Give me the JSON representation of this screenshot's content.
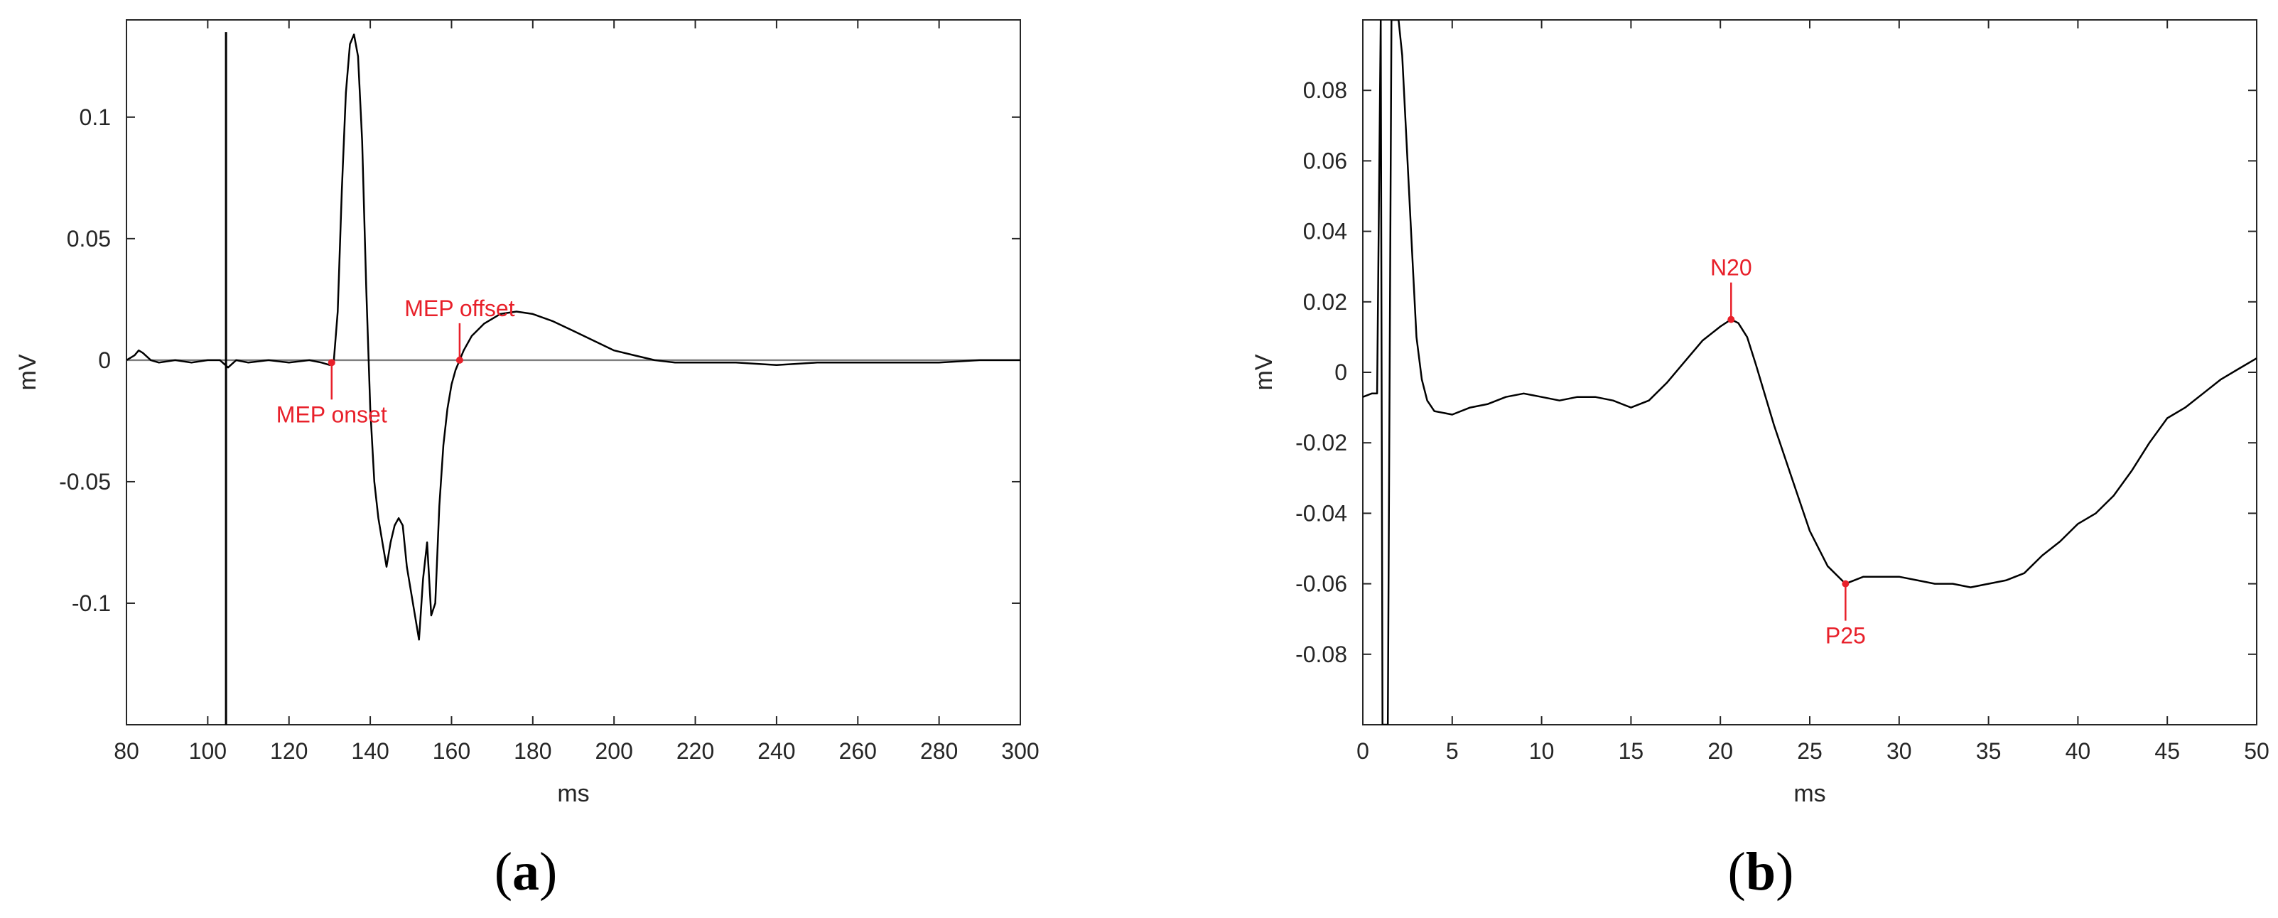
{
  "colors": {
    "trace": "#000000",
    "baseline": "#808080",
    "annotation": "#e8202a",
    "axis": "#262626"
  },
  "chart_data": [
    {
      "type": "line",
      "panel_label": "a",
      "xlabel": "ms",
      "ylabel": "mV",
      "xlim": [
        80,
        300
      ],
      "ylim": [
        -0.15,
        0.14
      ],
      "xticks": [
        80,
        100,
        120,
        140,
        160,
        180,
        200,
        220,
        240,
        260,
        280,
        300
      ],
      "xtick_labels": [
        "80",
        "100",
        "120",
        "140",
        "160",
        "180",
        "200",
        "220",
        "240",
        "260",
        "280",
        "300"
      ],
      "yticks": [
        0.1,
        0.05,
        0,
        -0.05,
        -0.1
      ],
      "ytick_labels": [
        "0.1",
        "0.05",
        "0",
        "-0.05",
        "-0.1"
      ],
      "grid": false,
      "baseline_y": 0,
      "stimulus_artifact": {
        "x": 104.5,
        "y_top": 0.135,
        "y_bottom": -0.15
      },
      "series": [
        {
          "points": [
            [
              80,
              0.0
            ],
            [
              82,
              0.002
            ],
            [
              83,
              0.004
            ],
            [
              84,
              0.003
            ],
            [
              86,
              0.0
            ],
            [
              88,
              -0.001
            ],
            [
              92,
              0.0
            ],
            [
              96,
              -0.001
            ],
            [
              100,
              0.0
            ],
            [
              103,
              0.0
            ],
            [
              105,
              -0.003
            ],
            [
              107,
              0.0
            ],
            [
              110,
              -0.001
            ],
            [
              115,
              0.0
            ],
            [
              120,
              -0.001
            ],
            [
              125,
              0.0
            ],
            [
              128,
              -0.001
            ],
            [
              130,
              -0.002
            ],
            [
              131,
              -0.001
            ],
            [
              132,
              0.02
            ],
            [
              133,
              0.07
            ],
            [
              134,
              0.11
            ],
            [
              135,
              0.13
            ],
            [
              136,
              0.134
            ],
            [
              137,
              0.125
            ],
            [
              138,
              0.09
            ],
            [
              139,
              0.03
            ],
            [
              140,
              -0.02
            ],
            [
              141,
              -0.05
            ],
            [
              142,
              -0.065
            ],
            [
              143,
              -0.075
            ],
            [
              144,
              -0.085
            ],
            [
              145,
              -0.075
            ],
            [
              146,
              -0.068
            ],
            [
              147,
              -0.065
            ],
            [
              148,
              -0.068
            ],
            [
              149,
              -0.085
            ],
            [
              150,
              -0.095
            ],
            [
              151,
              -0.105
            ],
            [
              152,
              -0.115
            ],
            [
              153,
              -0.09
            ],
            [
              154,
              -0.075
            ],
            [
              155,
              -0.105
            ],
            [
              156,
              -0.1
            ],
            [
              157,
              -0.06
            ],
            [
              158,
              -0.035
            ],
            [
              159,
              -0.02
            ],
            [
              160,
              -0.01
            ],
            [
              161,
              -0.004
            ],
            [
              162,
              0.0
            ],
            [
              163,
              0.004
            ],
            [
              165,
              0.01
            ],
            [
              168,
              0.015
            ],
            [
              172,
              0.019
            ],
            [
              176,
              0.02
            ],
            [
              180,
              0.019
            ],
            [
              185,
              0.016
            ],
            [
              190,
              0.012
            ],
            [
              195,
              0.008
            ],
            [
              200,
              0.004
            ],
            [
              205,
              0.002
            ],
            [
              210,
              0.0
            ],
            [
              215,
              -0.001
            ],
            [
              220,
              -0.001
            ],
            [
              230,
              -0.001
            ],
            [
              240,
              -0.002
            ],
            [
              250,
              -0.001
            ],
            [
              260,
              -0.001
            ],
            [
              270,
              -0.001
            ],
            [
              280,
              -0.001
            ],
            [
              290,
              0.0
            ],
            [
              300,
              0.0
            ]
          ]
        }
      ],
      "annotations": [
        {
          "label": "MEP onset",
          "x": 130.5,
          "y": -0.001,
          "position": "below"
        },
        {
          "label": "MEP offset",
          "x": 162,
          "y": 0.0,
          "position": "above"
        }
      ]
    },
    {
      "type": "line",
      "panel_label": "b",
      "xlabel": "ms",
      "ylabel": "mV",
      "xlim": [
        0,
        50
      ],
      "ylim": [
        -0.1,
        0.1
      ],
      "xticks": [
        0,
        5,
        10,
        15,
        20,
        25,
        30,
        35,
        40,
        45,
        50
      ],
      "xtick_labels": [
        "0",
        "5",
        "10",
        "15",
        "20",
        "25",
        "30",
        "35",
        "40",
        "45",
        "50"
      ],
      "yticks": [
        0.08,
        0.06,
        0.04,
        0.02,
        0,
        -0.02,
        -0.04,
        -0.06,
        -0.08
      ],
      "ytick_labels": [
        "0.08",
        "0.06",
        "0.04",
        "0.02",
        "0",
        "-0.02",
        "-0.04",
        "-0.06",
        "-0.08"
      ],
      "grid": false,
      "series": [
        {
          "points": [
            [
              0,
              -0.007
            ],
            [
              0.5,
              -0.006
            ],
            [
              0.8,
              -0.006
            ],
            [
              1.0,
              0.1
            ],
            [
              1.1,
              -0.1
            ],
            [
              1.4,
              -0.1
            ],
            [
              1.6,
              0.1
            ],
            [
              1.8,
              0.1
            ],
            [
              2.0,
              0.1
            ],
            [
              2.2,
              0.09
            ],
            [
              2.5,
              0.06
            ],
            [
              2.8,
              0.03
            ],
            [
              3.0,
              0.01
            ],
            [
              3.3,
              -0.002
            ],
            [
              3.6,
              -0.008
            ],
            [
              4.0,
              -0.011
            ],
            [
              5,
              -0.012
            ],
            [
              6,
              -0.01
            ],
            [
              7,
              -0.009
            ],
            [
              8,
              -0.007
            ],
            [
              9,
              -0.006
            ],
            [
              10,
              -0.007
            ],
            [
              11,
              -0.008
            ],
            [
              12,
              -0.007
            ],
            [
              13,
              -0.007
            ],
            [
              14,
              -0.008
            ],
            [
              15,
              -0.01
            ],
            [
              16,
              -0.008
            ],
            [
              17,
              -0.003
            ],
            [
              18,
              0.003
            ],
            [
              19,
              0.009
            ],
            [
              20,
              0.013
            ],
            [
              20.6,
              0.015
            ],
            [
              21,
              0.014
            ],
            [
              21.5,
              0.01
            ],
            [
              22,
              0.002
            ],
            [
              23,
              -0.015
            ],
            [
              24,
              -0.03
            ],
            [
              25,
              -0.045
            ],
            [
              26,
              -0.055
            ],
            [
              27,
              -0.06
            ],
            [
              28,
              -0.058
            ],
            [
              29,
              -0.058
            ],
            [
              30,
              -0.058
            ],
            [
              31,
              -0.059
            ],
            [
              32,
              -0.06
            ],
            [
              33,
              -0.06
            ],
            [
              34,
              -0.061
            ],
            [
              35,
              -0.06
            ],
            [
              36,
              -0.059
            ],
            [
              37,
              -0.057
            ],
            [
              38,
              -0.052
            ],
            [
              39,
              -0.048
            ],
            [
              40,
              -0.043
            ],
            [
              41,
              -0.04
            ],
            [
              42,
              -0.035
            ],
            [
              43,
              -0.028
            ],
            [
              44,
              -0.02
            ],
            [
              45,
              -0.013
            ],
            [
              46,
              -0.01
            ],
            [
              47,
              -0.006
            ],
            [
              48,
              -0.002
            ],
            [
              49,
              0.001
            ],
            [
              50,
              0.004
            ]
          ]
        }
      ],
      "annotations": [
        {
          "label": "N20",
          "x": 20.6,
          "y": 0.015,
          "position": "above"
        },
        {
          "label": "P25",
          "x": 27,
          "y": -0.06,
          "position": "below"
        }
      ]
    }
  ]
}
